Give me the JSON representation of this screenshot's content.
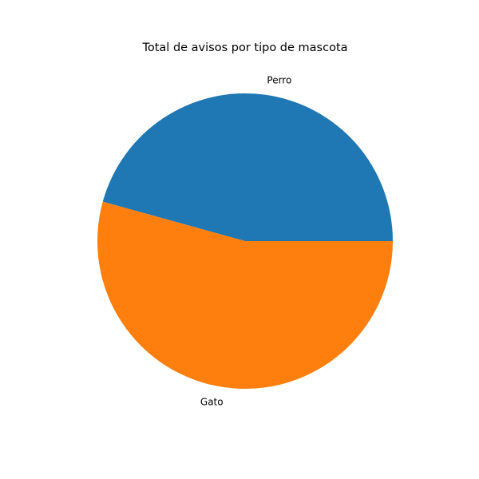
{
  "chart_data": {
    "type": "pie",
    "title": "Total de avisos por tipo de mascota",
    "categories": [
      "Perro",
      "Gato"
    ],
    "values": [
      45.7,
      54.3
    ],
    "colors": [
      "#1f77b4",
      "#ff7f0e"
    ],
    "start_angle": 0,
    "direction": "counterclockwise",
    "legend": "none"
  }
}
